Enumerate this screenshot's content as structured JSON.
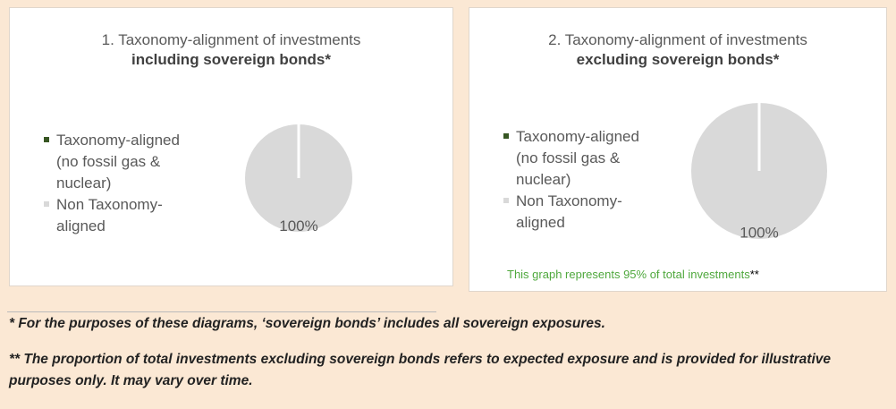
{
  "chart_data": [
    {
      "type": "pie",
      "title": "1. Taxonomy-alignment of investments",
      "subtitle": "including sovereign bonds*",
      "categories": [
        "Taxonomy-aligned (no fossil gas & nuclear)",
        "Non Taxonomy-aligned"
      ],
      "values": [
        0,
        100
      ],
      "value_labels": [
        null,
        "100%"
      ],
      "colors": [
        "#375623",
        "#d9d9d9"
      ],
      "legend": "left"
    },
    {
      "type": "pie",
      "title": "2. Taxonomy-alignment of investments",
      "subtitle": "excluding sovereign bonds*",
      "categories": [
        "Taxonomy-aligned (no fossil gas & nuclear)",
        "Non Taxonomy-aligned"
      ],
      "values": [
        0,
        100
      ],
      "value_labels": [
        null,
        "100%"
      ],
      "colors": [
        "#375623",
        "#d9d9d9"
      ],
      "legend": "left",
      "note": "This graph represents 95% of total investments",
      "note_mark": "**"
    }
  ],
  "footnotes": [
    "* For the purposes of these diagrams, ‘sovereign bonds’ includes all sovereign exposures.",
    "** The proportion of total investments excluding sovereign bonds refers to expected exposure and is provided for illustrative purposes only. It may vary over time."
  ]
}
